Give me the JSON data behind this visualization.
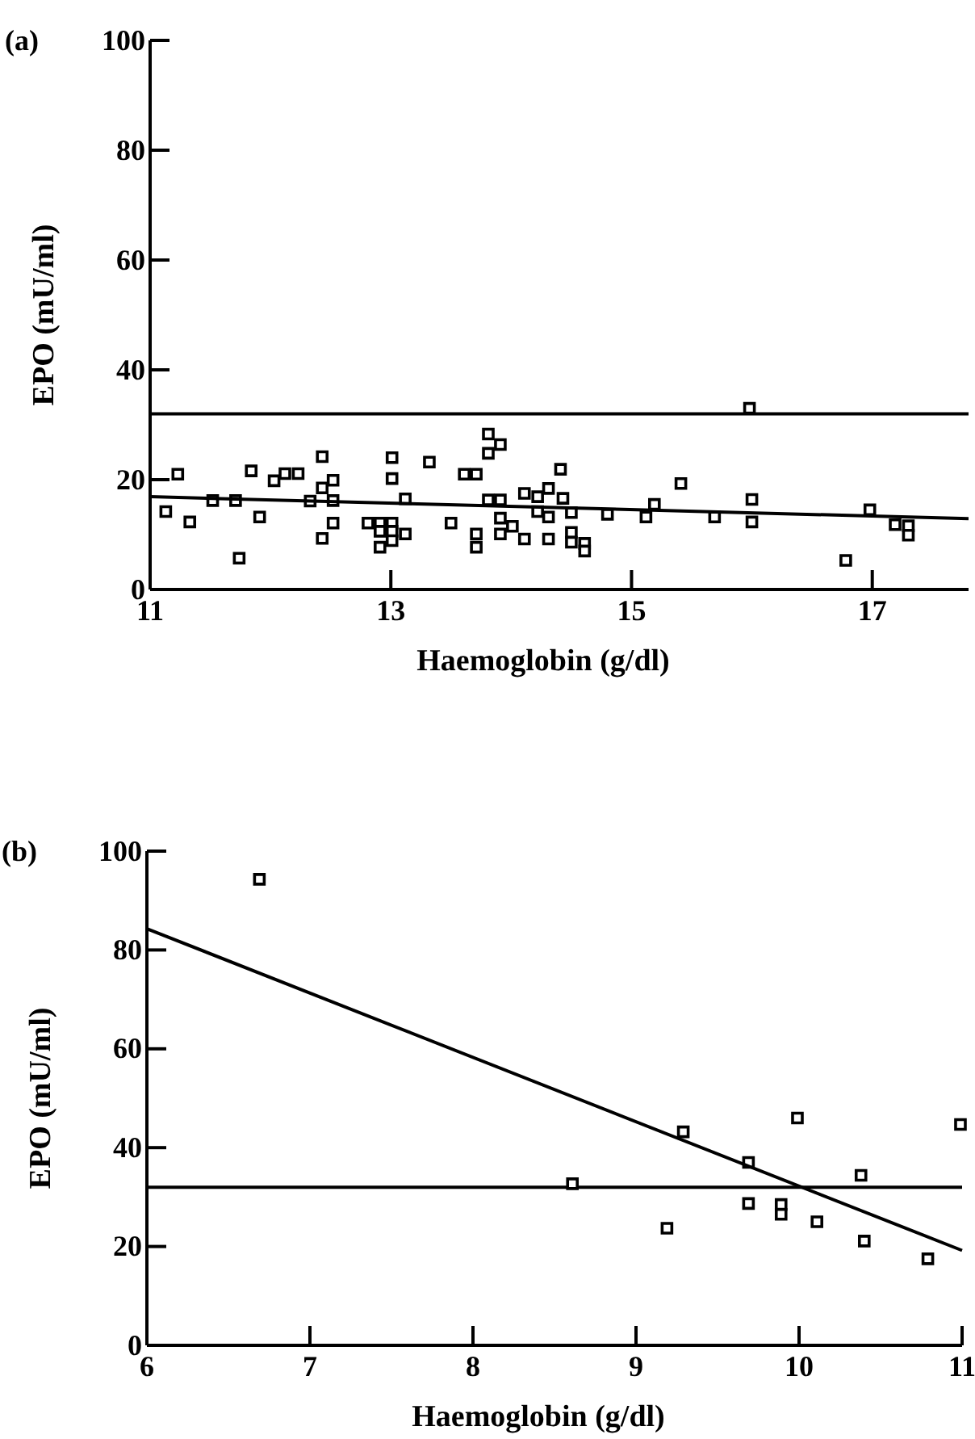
{
  "chart_data": [
    {
      "type": "scatter",
      "title": "(a)",
      "xlabel": "Haemoglobin (g/dl)",
      "ylabel": "EPO (mU/ml)",
      "xlim": [
        11,
        17.8
      ],
      "xticks": [
        11,
        13,
        15,
        17
      ],
      "ylim": [
        0,
        100
      ],
      "yticks": [
        0,
        20,
        40,
        60,
        80,
        100
      ],
      "grid": false,
      "ref_lines": [
        {
          "axis": "y",
          "value": 32,
          "color": "#000000"
        }
      ],
      "series": [
        {
          "marker": "square",
          "color": "#000000",
          "x": [
            11.13,
            11.23,
            11.33,
            11.52,
            11.71,
            11.74,
            11.84,
            11.91,
            12.03,
            12.12,
            12.23,
            12.33,
            12.43,
            12.43,
            12.43,
            12.52,
            12.52,
            12.52,
            12.81,
            12.91,
            12.91,
            12.91,
            13.01,
            13.01,
            13.01,
            13.01,
            13.01,
            13.12,
            13.12,
            13.32,
            13.5,
            13.61,
            13.71,
            13.71,
            13.71,
            13.81,
            13.81,
            13.81,
            13.91,
            13.91,
            13.91,
            13.91,
            14.01,
            14.11,
            14.11,
            14.22,
            14.22,
            14.31,
            14.31,
            14.31,
            14.41,
            14.43,
            14.5,
            14.5,
            14.5,
            14.61,
            14.61,
            14.8,
            15.12,
            15.19,
            15.41,
            15.69,
            15.98,
            16.0,
            16.0,
            16.78,
            16.98,
            17.19,
            17.3,
            17.3
          ],
          "values": [
            14.2,
            21.0,
            12.3,
            16.2,
            16.2,
            5.7,
            21.6,
            13.2,
            19.8,
            21.1,
            21.1,
            16.1,
            24.2,
            18.5,
            9.3,
            19.9,
            16.2,
            12.1,
            12.1,
            12.1,
            10.6,
            7.7,
            24.0,
            20.2,
            12.1,
            10.6,
            8.9,
            16.5,
            10.1,
            23.2,
            12.1,
            21.0,
            21.0,
            10.1,
            7.7,
            28.3,
            24.8,
            16.3,
            26.4,
            16.3,
            13.0,
            10.1,
            11.5,
            17.5,
            9.2,
            16.9,
            14.2,
            18.4,
            13.2,
            9.2,
            21.9,
            16.6,
            14.0,
            10.4,
            8.6,
            8.4,
            7.0,
            13.7,
            13.2,
            15.5,
            19.3,
            13.2,
            33.0,
            16.4,
            12.3,
            5.3,
            14.5,
            11.8,
            11.6,
            9.9
          ]
        },
        {
          "type": "line",
          "marker": "none",
          "color": "#000000",
          "line_style": "solid",
          "x": [
            11,
            17.8
          ],
          "values": [
            16.9,
            12.9
          ]
        }
      ]
    },
    {
      "type": "scatter",
      "title": "(b)",
      "xlabel": "Haemoglobin (g/dl)",
      "ylabel": "EPO (mU/ml)",
      "xlim": [
        6,
        11
      ],
      "xticks": [
        6,
        7,
        8,
        9,
        10,
        11
      ],
      "ylim": [
        0,
        100
      ],
      "yticks": [
        0,
        20,
        40,
        60,
        80,
        100
      ],
      "grid": false,
      "ref_lines": [
        {
          "axis": "y",
          "value": 32,
          "color": "#000000"
        }
      ],
      "series": [
        {
          "marker": "square",
          "color": "#000000",
          "x": [
            6.69,
            8.61,
            9.19,
            9.29,
            9.69,
            9.69,
            9.89,
            9.89,
            9.99,
            10.11,
            10.38,
            10.4,
            10.79,
            10.99
          ],
          "values": [
            94.3,
            32.7,
            23.7,
            43.2,
            37.0,
            28.7,
            28.5,
            26.5,
            46.0,
            25.0,
            34.4,
            21.1,
            17.5,
            44.7
          ]
        },
        {
          "type": "line",
          "marker": "none",
          "color": "#000000",
          "line_style": "solid",
          "x": [
            6,
            11
          ],
          "values": [
            84.3,
            19.2
          ]
        }
      ]
    }
  ]
}
